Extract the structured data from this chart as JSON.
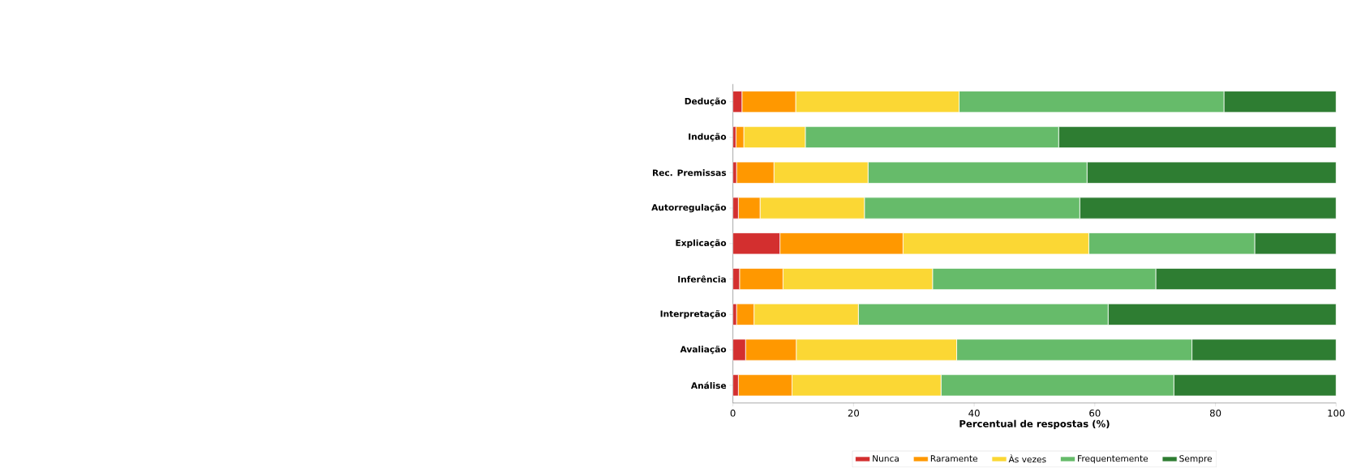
{
  "chart_data": {
    "type": "bar",
    "orientation": "horizontal",
    "stacked": true,
    "xlabel": "Percentual de respostas (%)",
    "categories": [
      "Dedução",
      "Indução",
      "Rec. Premissas",
      "Autorregulação",
      "Explicação",
      "Inferência",
      "Interpretação",
      "Avaliação",
      "Análise"
    ],
    "xlim": [
      0,
      100
    ],
    "xticks": [
      0,
      20,
      40,
      60,
      80,
      100
    ],
    "legend": "bottom",
    "series": [
      {
        "name": "Nunca",
        "color": "#d32f2f",
        "values": [
          1.5,
          0.5,
          0.6,
          0.9,
          7.8,
          1.1,
          0.6,
          2.1,
          0.9
        ]
      },
      {
        "name": "Raramente",
        "color": "#ff9800",
        "values": [
          8.9,
          1.3,
          6.2,
          3.6,
          20.4,
          7.2,
          2.9,
          8.4,
          8.9
        ]
      },
      {
        "name": "Às vezes",
        "color": "#fbd734",
        "values": [
          27.1,
          10.2,
          15.6,
          17.3,
          30.8,
          24.8,
          17.3,
          26.6,
          24.7
        ]
      },
      {
        "name": "Frequentemente",
        "color": "#66bb6a",
        "values": [
          43.9,
          42.0,
          36.3,
          35.7,
          27.5,
          37.0,
          41.4,
          39.0,
          38.6
        ]
      },
      {
        "name": "Sempre",
        "color": "#2e7d32",
        "values": [
          18.6,
          46.0,
          41.3,
          42.5,
          13.5,
          29.9,
          37.8,
          23.9,
          26.9
        ]
      }
    ]
  }
}
